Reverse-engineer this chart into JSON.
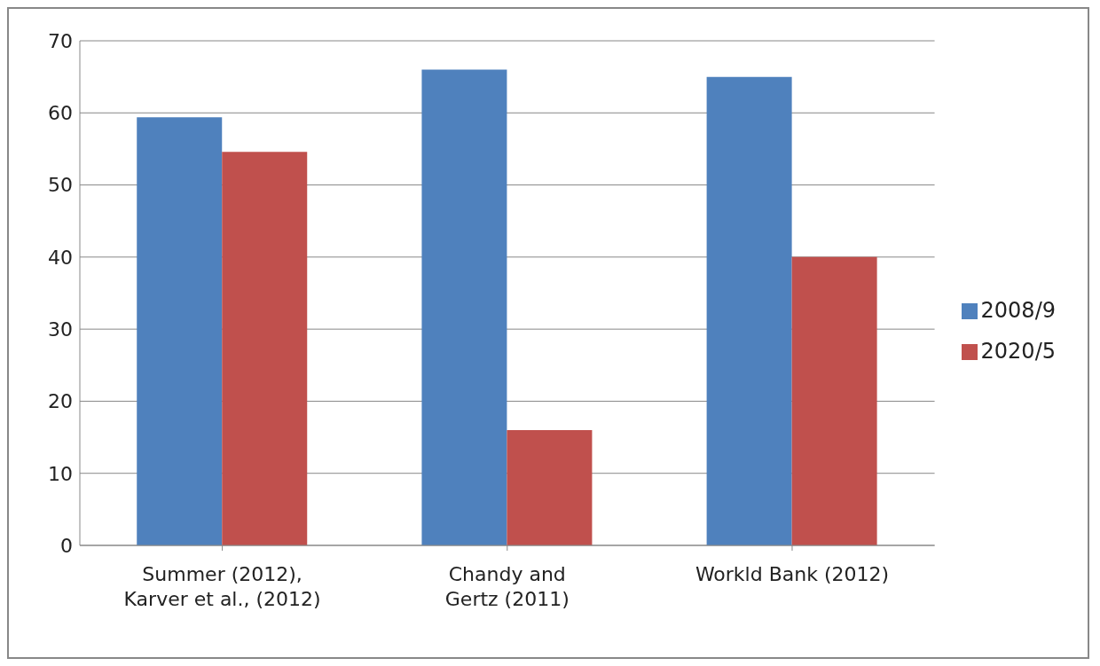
{
  "chart_data": {
    "type": "bar",
    "categories": [
      "Summer (2012), Karver et al., (2012)",
      "Chandy and Gertz (2011)",
      "Workld Bank (2012)"
    ],
    "series": [
      {
        "name": "2008/9",
        "color": "#4f81bd",
        "values": [
          59.4,
          66,
          65
        ]
      },
      {
        "name": "2020/5",
        "color": "#c0504d",
        "values": [
          54.6,
          16,
          40
        ]
      }
    ],
    "ylim": [
      0,
      70
    ],
    "yticks": [
      0,
      10,
      20,
      30,
      40,
      50,
      60,
      70
    ],
    "grid": "y",
    "legend": "right"
  }
}
